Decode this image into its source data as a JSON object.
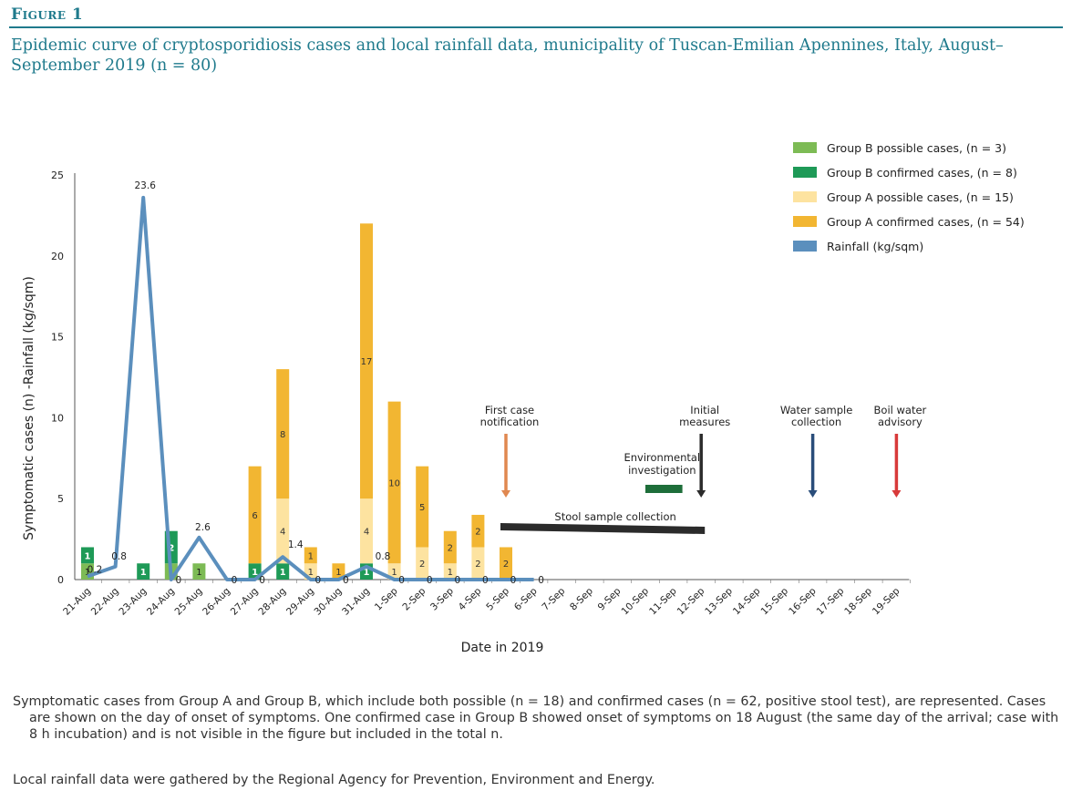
{
  "figure": {
    "label": "Figure 1",
    "title": "Epidemic curve of cryptosporidiosis cases and local rainfall data, municipality of Tuscan-Emilian Apennines, Italy, August–September 2019 (n = 80)"
  },
  "captions": [
    "Symptomatic cases from Group A and Group B, which include both possible (n = 18) and confirmed cases (n = 62, positive stool test), are represented. Cases are shown on the day of onset of symptoms. One confirmed case in Group B showed onset of symptoms on 18 August (the same day of the arrival; case with 8 h incubation) and is not visible in the figure but included in the total n.",
    "Local rainfall data were gathered by the Regional Agency for Prevention, Environment and Energy."
  ],
  "chart_data": {
    "type": "bar",
    "stacked": true,
    "xlabel": "Date in 2019",
    "ylabel": "Symptomatic cases (n) -Rainfall (kg/sqm)",
    "ylim": [
      0,
      25
    ],
    "yticks": [
      0,
      5,
      10,
      15,
      20,
      25
    ],
    "grid": false,
    "legend_position": "top-right",
    "categories": [
      "21-Aug",
      "22-Aug",
      "23-Aug",
      "24-Aug",
      "25-Aug",
      "26-Aug",
      "27-Aug",
      "28-Aug",
      "29-Aug",
      "30-Aug",
      "31-Aug",
      "1-Sep",
      "2-Sep",
      "3-Sep",
      "4-Sep",
      "5-Sep",
      "6-Sep",
      "7-Sep",
      "8-Sep",
      "9-Sep",
      "10-Sep",
      "11-Sep",
      "12-Sep",
      "13-Sep",
      "14-Sep",
      "15-Sep",
      "16-Sep",
      "17-Sep",
      "18-Sep",
      "19-Sep"
    ],
    "series": [
      {
        "name": "Group B possible cases, (n = 3)",
        "color": "#7dbb55",
        "values": [
          1,
          0,
          0,
          1,
          1,
          0,
          0,
          0,
          0,
          0,
          0,
          0,
          0,
          0,
          0,
          0,
          0,
          0,
          0,
          0,
          0,
          0,
          0,
          0,
          0,
          0,
          0,
          0,
          0,
          0
        ]
      },
      {
        "name": "Group B confirmed cases, (n = 8)",
        "color": "#1e9a57",
        "values": [
          1,
          0,
          1,
          2,
          0,
          0,
          1,
          1,
          0,
          0,
          1,
          0,
          0,
          0,
          0,
          0,
          0,
          0,
          0,
          0,
          0,
          0,
          0,
          0,
          0,
          0,
          0,
          0,
          0,
          0
        ]
      },
      {
        "name": "Group A possible cases, (n = 15)",
        "color": "#fde3a0",
        "values": [
          0,
          0,
          0,
          0,
          0,
          0,
          0,
          4,
          1,
          0,
          4,
          1,
          2,
          1,
          2,
          0,
          0,
          0,
          0,
          0,
          0,
          0,
          0,
          0,
          0,
          0,
          0,
          0,
          0,
          0
        ]
      },
      {
        "name": "Group A confirmed cases, (n = 54)",
        "color": "#f2b632",
        "values": [
          0,
          0,
          0,
          0,
          0,
          0,
          6,
          8,
          1,
          1,
          17,
          10,
          5,
          2,
          2,
          2,
          0,
          0,
          0,
          0,
          0,
          0,
          0,
          0,
          0,
          0,
          0,
          0,
          0,
          0
        ]
      }
    ],
    "rainfall": {
      "name": "Rainfall (kg/sqm)",
      "color": "#5b8fbd",
      "values": [
        0.2,
        0.8,
        23.6,
        0,
        2.6,
        0,
        0,
        1.4,
        0,
        0,
        0.8,
        0,
        0,
        0,
        0,
        0,
        0
      ],
      "labels": [
        "0.2",
        "0.8",
        "23.6",
        "0",
        "2.6",
        "0",
        "0",
        "1.4",
        "0",
        "0",
        "0.8",
        "0",
        "0",
        "0",
        "0",
        "0",
        "0"
      ]
    },
    "annotations": [
      {
        "type": "arrow",
        "label_lines": [
          "First case",
          "notification"
        ],
        "date": "5-Sep",
        "color": "#e08850"
      },
      {
        "type": "arrow",
        "label_lines": [
          "Initial",
          "measures"
        ],
        "date": "12-Sep",
        "color": "#2b2b2b"
      },
      {
        "type": "arrow",
        "label_lines": [
          "Water sample",
          "collection"
        ],
        "date": "16-Sep",
        "color": "#2a4d7a"
      },
      {
        "type": "arrow",
        "label_lines": [
          "Boil water",
          "advisory"
        ],
        "date": "19-Sep",
        "color": "#d83a3a"
      },
      {
        "type": "span",
        "label_lines": [
          "Environmental",
          "investigation"
        ],
        "start": "10-Sep",
        "end": "11-Sep",
        "color": "#1e6e3a"
      },
      {
        "type": "span",
        "label_lines": [
          "Stool sample collection"
        ],
        "start": "5-Sep",
        "end": "12-Sep",
        "color": "#2b2b2b"
      }
    ]
  }
}
